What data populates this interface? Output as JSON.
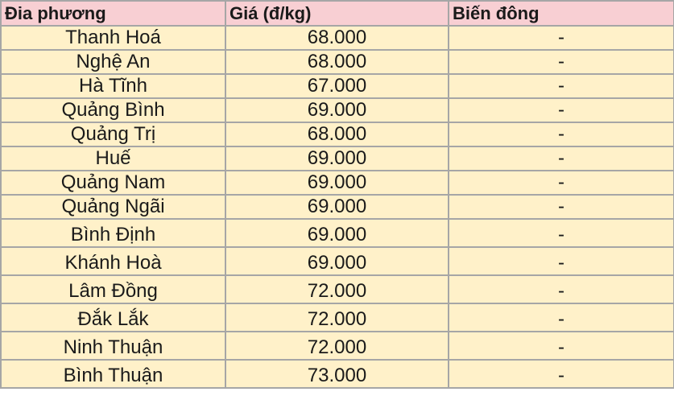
{
  "header": {
    "columns": [
      "Đia phương",
      "Giá (đ/kg)",
      "Biến đông"
    ]
  },
  "table": {
    "rows": [
      [
        "Thanh Hoá",
        "68.000",
        "-"
      ],
      [
        "Nghệ An",
        "68.000",
        "-"
      ],
      [
        "Hà Tĩnh",
        "67.000",
        "-"
      ],
      [
        "Quảng Bình",
        "69.000",
        "-"
      ],
      [
        "Quảng Trị",
        "68.000",
        "-"
      ],
      [
        "Huế",
        "69.000",
        "-"
      ],
      [
        "Quảng Nam",
        "69.000",
        "-"
      ],
      [
        "Quảng Ngãi",
        "69.000",
        "-"
      ],
      [
        "Bình Định",
        "69.000",
        "-"
      ],
      [
        "Khánh Hoà",
        "69.000",
        "-"
      ],
      [
        "Lâm Đồng",
        "72.000",
        "-"
      ],
      [
        "Đắk Lắk",
        "72.000",
        "-"
      ],
      [
        "Ninh Thuận",
        "72.000",
        "-"
      ],
      [
        "Bình Thuận",
        "73.000",
        "-"
      ]
    ]
  }
}
